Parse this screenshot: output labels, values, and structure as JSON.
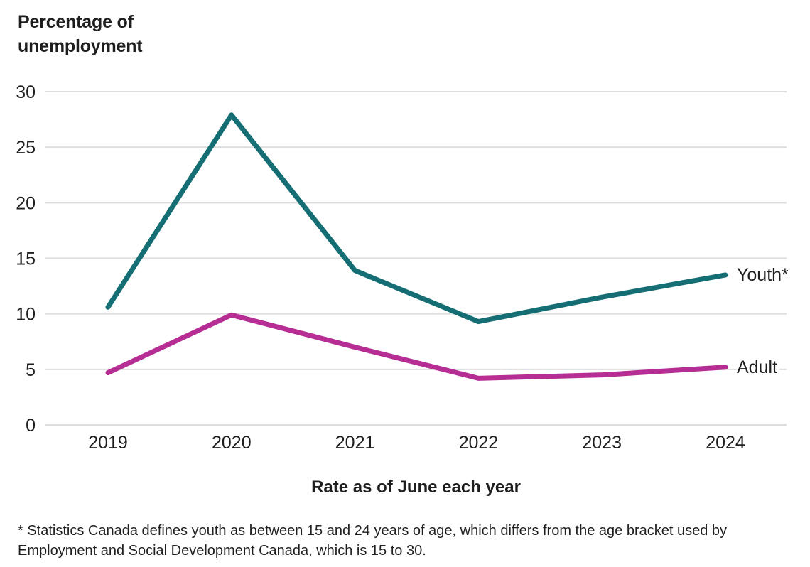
{
  "chart_data": {
    "type": "line",
    "title": "Percentage of unemployment",
    "xlabel": "Rate as of June each year",
    "ylabel": "",
    "categories": [
      "2019",
      "2020",
      "2021",
      "2022",
      "2023",
      "2024"
    ],
    "yticks": [
      0,
      5,
      10,
      15,
      20,
      25,
      30
    ],
    "ylim": [
      0,
      30
    ],
    "grid": "horizontal",
    "legend_position": "end-of-line-labels",
    "series": [
      {
        "name": "Youth*",
        "color": "#146e73",
        "values": [
          10.6,
          27.9,
          13.9,
          9.3,
          11.5,
          13.5
        ]
      },
      {
        "name": "Adult",
        "color": "#b62d94",
        "values": [
          4.7,
          9.9,
          7.0,
          4.2,
          4.5,
          5.2
        ]
      }
    ]
  },
  "footnote": "* Statistics Canada defines youth as between 15 and 24 years of age, which differs from the age bracket used by Employment and Social Development Canada, which is 15 to 30.",
  "colors": {
    "text": "#1e1e1e",
    "gridline": "#dedede",
    "background": "#ffffff"
  }
}
